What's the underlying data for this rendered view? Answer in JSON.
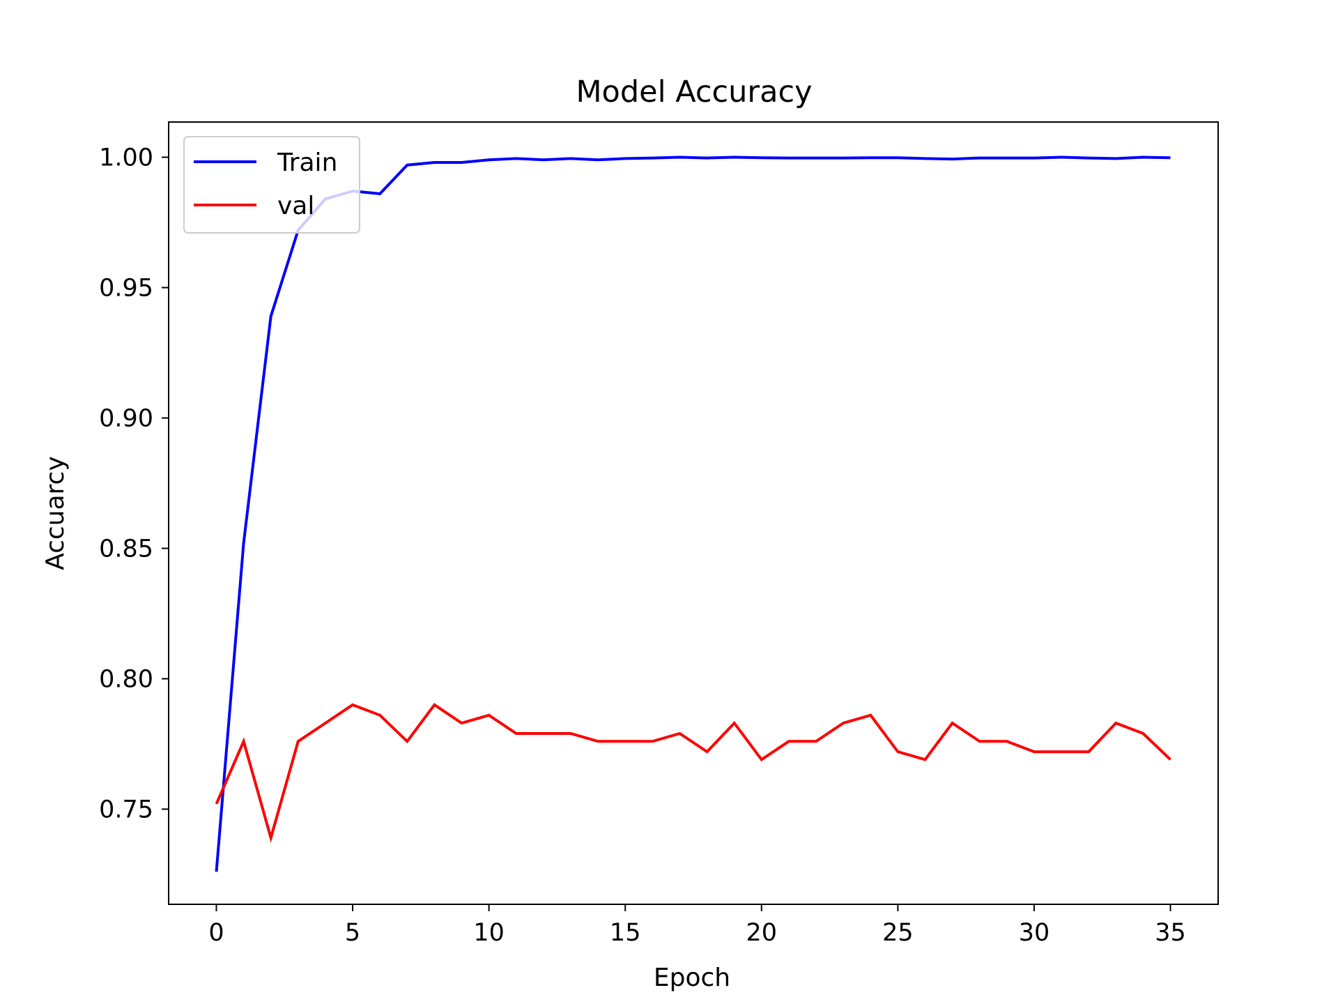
{
  "chart_data": {
    "type": "line",
    "title": "Model Accuracy",
    "xlabel": "Epoch",
    "ylabel": "Accuarcy",
    "xlim": [
      -1.75,
      36.75
    ],
    "ylim": [
      0.7135,
      1.0135
    ],
    "xticks": [
      0,
      5,
      10,
      15,
      20,
      25,
      30,
      35
    ],
    "yticks": [
      0.75,
      0.8,
      0.85,
      0.9,
      0.95,
      1.0
    ],
    "ytick_labels": [
      "0.75",
      "0.80",
      "0.85",
      "0.90",
      "0.95",
      "1.00"
    ],
    "grid": false,
    "legend_position": "upper-left",
    "x": [
      0,
      1,
      2,
      3,
      4,
      5,
      6,
      7,
      8,
      9,
      10,
      11,
      12,
      13,
      14,
      15,
      16,
      17,
      18,
      19,
      20,
      21,
      22,
      23,
      24,
      25,
      26,
      27,
      28,
      29,
      30,
      31,
      32,
      33,
      34,
      35
    ],
    "series": [
      {
        "name": "Train",
        "color": "#0000ff",
        "values": [
          0.726,
          0.852,
          0.939,
          0.972,
          0.984,
          0.987,
          0.986,
          0.997,
          0.998,
          0.998,
          0.999,
          0.9995,
          0.999,
          0.9995,
          0.999,
          0.9995,
          0.9997,
          1.0,
          0.9997,
          1.0,
          0.9998,
          0.9997,
          0.9997,
          0.9997,
          0.9998,
          0.9998,
          0.9995,
          0.9993,
          0.9997,
          0.9997,
          0.9997,
          1.0,
          0.9997,
          0.9995,
          1.0,
          0.9998
        ]
      },
      {
        "name": "val",
        "color": "#ff0000",
        "values": [
          0.752,
          0.776,
          0.739,
          0.776,
          0.783,
          0.79,
          0.786,
          0.776,
          0.79,
          0.783,
          0.786,
          0.779,
          0.779,
          0.779,
          0.776,
          0.776,
          0.776,
          0.779,
          0.772,
          0.783,
          0.769,
          0.776,
          0.776,
          0.783,
          0.786,
          0.772,
          0.769,
          0.783,
          0.776,
          0.776,
          0.772,
          0.772,
          0.772,
          0.783,
          0.779,
          0.769
        ]
      }
    ]
  }
}
